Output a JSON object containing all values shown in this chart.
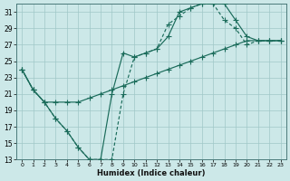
{
  "xlabel": "Humidex (Indice chaleur)",
  "bg_color": "#cce8e8",
  "line_color": "#1a6b5a",
  "grid_color": "#a0c8c8",
  "xlim": [
    -0.5,
    23.5
  ],
  "ylim": [
    13,
    32
  ],
  "xticks": [
    0,
    1,
    2,
    3,
    4,
    5,
    6,
    7,
    8,
    9,
    10,
    11,
    12,
    13,
    14,
    15,
    16,
    17,
    18,
    19,
    20,
    21,
    22,
    23
  ],
  "yticks": [
    13,
    15,
    17,
    19,
    21,
    23,
    25,
    27,
    29,
    31
  ],
  "series1_x": [
    0,
    1,
    2,
    3,
    4,
    5,
    6,
    7,
    8,
    9,
    10,
    11,
    12,
    13,
    14,
    15,
    16,
    17,
    18,
    19,
    20,
    21,
    22,
    23
  ],
  "series1_y": [
    24,
    21.5,
    20,
    18,
    16.5,
    14.5,
    13,
    13,
    21,
    26,
    25.5,
    26,
    26.5,
    28,
    31,
    31.5,
    32,
    32,
    32,
    30,
    28,
    27.5,
    27.5,
    27.5
  ],
  "series2_x": [
    0,
    1,
    2,
    3,
    4,
    5,
    6,
    7,
    8,
    9,
    10,
    11,
    12,
    13,
    14,
    15,
    16,
    17,
    18,
    19,
    20,
    21,
    22,
    23
  ],
  "series2_y": [
    24,
    21.5,
    20,
    18,
    16.5,
    14.5,
    13,
    13,
    13,
    21,
    25.5,
    26,
    26.5,
    29.5,
    30.5,
    31.5,
    32,
    32,
    30,
    29,
    27,
    27.5,
    27.5,
    27.5
  ],
  "series3_x": [
    0,
    1,
    2,
    3,
    4,
    5,
    6,
    7,
    8,
    9,
    10,
    11,
    12,
    13,
    14,
    15,
    16,
    17,
    18,
    19,
    20,
    21,
    22,
    23
  ],
  "series3_y": [
    24,
    21.5,
    20,
    20,
    20,
    20,
    20.5,
    21,
    21.5,
    22,
    22.5,
    23,
    23.5,
    24,
    24.5,
    25,
    25.5,
    26,
    26.5,
    27,
    27.5,
    27.5,
    27.5,
    27.5
  ]
}
